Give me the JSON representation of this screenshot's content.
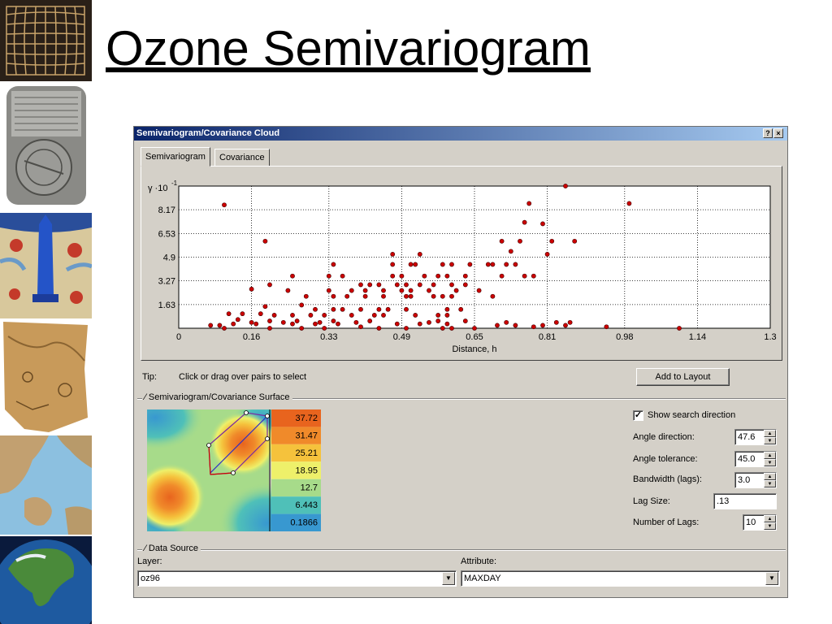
{
  "slide": {
    "title": "Ozone Semivariogram"
  },
  "dialog": {
    "title": "Semivariogram/Covariance Cloud",
    "titlebar_buttons": {
      "help": "?",
      "close": "×"
    },
    "tabs": [
      {
        "label": "Semivariogram",
        "active": true
      },
      {
        "label": "Covariance",
        "active": false
      }
    ],
    "tip_label": "Tip:",
    "tip_text": "Click or drag over pairs to select",
    "add_to_layout": "Add to Layout",
    "surface_group": "Semivariogram/Covariance Surface",
    "legend_values": [
      "37.72",
      "31.47",
      "25.21",
      "18.95",
      "12.7",
      "6.443",
      "0.1866"
    ],
    "legend_colors": [
      "#e8641e",
      "#f08a2a",
      "#f5c23c",
      "#eef06a",
      "#a7db8a",
      "#4fc0b8",
      "#3898d0"
    ],
    "show_search_direction": {
      "label": "Show search direction",
      "checked": true
    },
    "params": [
      {
        "label": "Angle direction:",
        "value": "47.6",
        "type": "spin"
      },
      {
        "label": "Angle tolerance:",
        "value": "45.0",
        "type": "spin"
      },
      {
        "label": "Bandwidth (lags):",
        "value": "3.0",
        "type": "spin"
      },
      {
        "label": "Lag Size:",
        "value": ".13",
        "type": "text"
      },
      {
        "label": "Number of Lags:",
        "value": "10",
        "type": "spin"
      }
    ],
    "data_source_group": "Data Source",
    "layer_label": "Layer:",
    "layer_value": "oz96",
    "attribute_label": "Attribute:",
    "attribute_value": "MAXDAY",
    "icons": {
      "checkmark": "check-icon",
      "spin": "spin-arrows-icon",
      "dropdown": "dropdown-arrow-icon"
    }
  },
  "thumbnails": [
    "grid-map",
    "clay-tablet-map",
    "tower-map",
    "parchment-map",
    "sea-map",
    "globe"
  ],
  "chart_data": {
    "type": "scatter",
    "ylabel_prefix": "γ ·10",
    "ylabel_exponent": "-1",
    "xlabel": "Distance, h",
    "xticks": [
      "0",
      "0.16",
      "0.33",
      "0.49",
      "0.65",
      "0.81",
      "0.98",
      "1.14",
      "1.3"
    ],
    "yticks": [
      "1.63",
      "3.27",
      "4.9",
      "6.53",
      "8.17"
    ],
    "xlim": [
      0,
      1.3
    ],
    "ylim": [
      0,
      9.8
    ],
    "grid": true,
    "point_color": "#cc0000",
    "points": [
      [
        0.1,
        8.5
      ],
      [
        0.19,
        6.0
      ],
      [
        0.85,
        9.8
      ],
      [
        0.99,
        8.6
      ],
      [
        0.77,
        8.6
      ],
      [
        0.76,
        7.3
      ],
      [
        0.8,
        7.2
      ],
      [
        0.71,
        6.0
      ],
      [
        0.75,
        6.0
      ],
      [
        0.82,
        6.0
      ],
      [
        0.87,
        6.0
      ],
      [
        0.73,
        5.3
      ],
      [
        0.81,
        5.1
      ],
      [
        0.47,
        5.1
      ],
      [
        0.53,
        5.1
      ],
      [
        0.34,
        4.4
      ],
      [
        0.47,
        4.4
      ],
      [
        0.51,
        4.4
      ],
      [
        0.52,
        4.4
      ],
      [
        0.58,
        4.4
      ],
      [
        0.6,
        4.4
      ],
      [
        0.64,
        4.4
      ],
      [
        0.68,
        4.4
      ],
      [
        0.69,
        4.4
      ],
      [
        0.72,
        4.4
      ],
      [
        0.74,
        4.4
      ],
      [
        0.25,
        3.6
      ],
      [
        0.33,
        3.6
      ],
      [
        0.36,
        3.6
      ],
      [
        0.47,
        3.6
      ],
      [
        0.49,
        3.6
      ],
      [
        0.54,
        3.6
      ],
      [
        0.57,
        3.6
      ],
      [
        0.59,
        3.6
      ],
      [
        0.63,
        3.6
      ],
      [
        0.71,
        3.6
      ],
      [
        0.76,
        3.6
      ],
      [
        0.78,
        3.6
      ],
      [
        0.2,
        3.0
      ],
      [
        0.4,
        3.0
      ],
      [
        0.42,
        3.0
      ],
      [
        0.44,
        3.0
      ],
      [
        0.48,
        3.0
      ],
      [
        0.5,
        3.0
      ],
      [
        0.53,
        3.0
      ],
      [
        0.56,
        3.0
      ],
      [
        0.6,
        3.0
      ],
      [
        0.63,
        3.0
      ],
      [
        0.16,
        2.7
      ],
      [
        0.24,
        2.6
      ],
      [
        0.33,
        2.6
      ],
      [
        0.38,
        2.6
      ],
      [
        0.41,
        2.6
      ],
      [
        0.45,
        2.6
      ],
      [
        0.49,
        2.6
      ],
      [
        0.51,
        2.6
      ],
      [
        0.55,
        2.6
      ],
      [
        0.61,
        2.6
      ],
      [
        0.66,
        2.6
      ],
      [
        0.28,
        2.2
      ],
      [
        0.34,
        2.2
      ],
      [
        0.37,
        2.2
      ],
      [
        0.41,
        2.2
      ],
      [
        0.45,
        2.2
      ],
      [
        0.5,
        2.2
      ],
      [
        0.51,
        2.2
      ],
      [
        0.56,
        2.2
      ],
      [
        0.58,
        2.2
      ],
      [
        0.6,
        2.2
      ],
      [
        0.69,
        2.2
      ],
      [
        0.19,
        1.5
      ],
      [
        0.27,
        1.6
      ],
      [
        0.3,
        1.3
      ],
      [
        0.34,
        1.3
      ],
      [
        0.36,
        1.3
      ],
      [
        0.4,
        1.3
      ],
      [
        0.44,
        1.3
      ],
      [
        0.46,
        1.3
      ],
      [
        0.5,
        1.3
      ],
      [
        0.59,
        1.3
      ],
      [
        0.62,
        1.3
      ],
      [
        0.11,
        1.0
      ],
      [
        0.14,
        1.0
      ],
      [
        0.18,
        1.0
      ],
      [
        0.21,
        0.9
      ],
      [
        0.25,
        0.9
      ],
      [
        0.29,
        0.9
      ],
      [
        0.32,
        0.9
      ],
      [
        0.38,
        0.9
      ],
      [
        0.43,
        0.9
      ],
      [
        0.45,
        0.9
      ],
      [
        0.52,
        0.9
      ],
      [
        0.57,
        0.9
      ],
      [
        0.59,
        0.9
      ],
      [
        0.07,
        0.2
      ],
      [
        0.09,
        0.2
      ],
      [
        0.12,
        0.3
      ],
      [
        0.13,
        0.6
      ],
      [
        0.16,
        0.4
      ],
      [
        0.17,
        0.3
      ],
      [
        0.2,
        0.5
      ],
      [
        0.23,
        0.4
      ],
      [
        0.25,
        0.3
      ],
      [
        0.26,
        0.5
      ],
      [
        0.3,
        0.3
      ],
      [
        0.31,
        0.4
      ],
      [
        0.34,
        0.5
      ],
      [
        0.35,
        0.3
      ],
      [
        0.39,
        0.4
      ],
      [
        0.42,
        0.5
      ],
      [
        0.48,
        0.3
      ],
      [
        0.53,
        0.3
      ],
      [
        0.55,
        0.4
      ],
      [
        0.57,
        0.5
      ],
      [
        0.59,
        0.3
      ],
      [
        0.63,
        0.5
      ],
      [
        0.65,
        0.0
      ],
      [
        0.7,
        0.2
      ],
      [
        0.72,
        0.4
      ],
      [
        0.74,
        0.2
      ],
      [
        0.8,
        0.2
      ],
      [
        0.83,
        0.4
      ],
      [
        0.86,
        0.4
      ],
      [
        0.94,
        0.1
      ],
      [
        1.1,
        0.0
      ],
      [
        0.32,
        0.0
      ],
      [
        0.4,
        0.1
      ],
      [
        0.5,
        0.0
      ],
      [
        0.6,
        0.0
      ],
      [
        0.1,
        0.0
      ],
      [
        0.2,
        0.0
      ],
      [
        0.27,
        0.0
      ],
      [
        0.44,
        0.0
      ],
      [
        0.58,
        0.0
      ],
      [
        0.78,
        0.1
      ],
      [
        0.85,
        0.2
      ]
    ]
  }
}
